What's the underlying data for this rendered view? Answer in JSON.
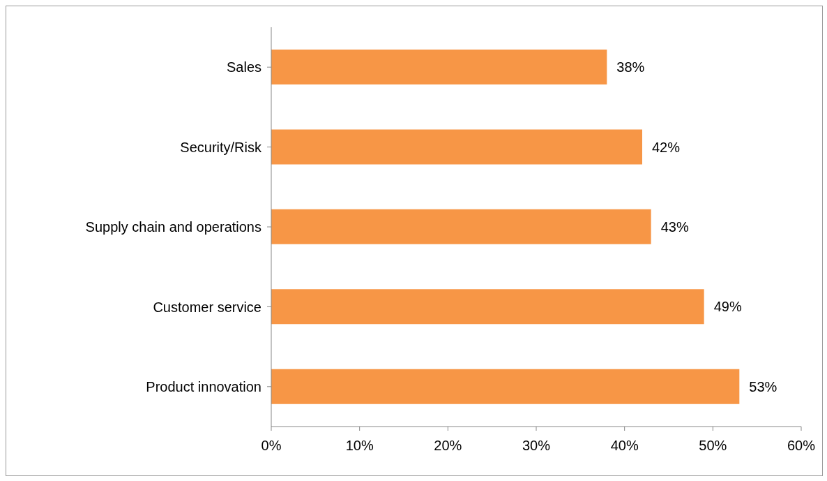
{
  "chart_data": {
    "type": "bar",
    "orientation": "horizontal",
    "categories": [
      "Sales",
      "Security/Risk",
      "Supply chain and operations",
      "Customer service",
      "Product innovation"
    ],
    "values": [
      38,
      42,
      43,
      49,
      53
    ],
    "value_labels": [
      "38%",
      "42%",
      "43%",
      "49%",
      "53%"
    ],
    "color": "#f79646",
    "xlim": [
      0,
      60
    ],
    "xticks": [
      {
        "value": 0,
        "label": "0%"
      },
      {
        "value": 10,
        "label": "10%"
      },
      {
        "value": 20,
        "label": "20%"
      },
      {
        "value": 30,
        "label": "30%"
      },
      {
        "value": 40,
        "label": "40%"
      },
      {
        "value": 50,
        "label": "50%"
      },
      {
        "value": 60,
        "label": "60%"
      }
    ],
    "grid": false
  }
}
